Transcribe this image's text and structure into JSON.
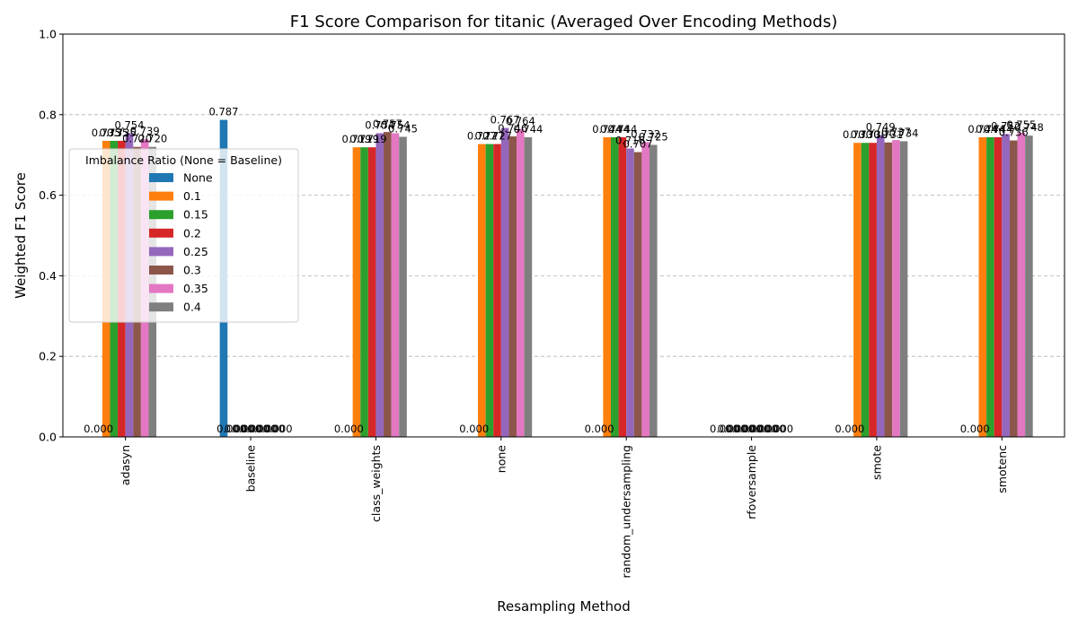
{
  "chart_data": {
    "type": "bar",
    "title": "F1 Score Comparison for titanic (Averaged Over Encoding Methods)",
    "xlabel": "Resampling Method",
    "ylabel": "Weighted F1 Score",
    "ylim": [
      0,
      1.0
    ],
    "yticks": [
      "0.0",
      "0.2",
      "0.4",
      "0.6",
      "0.8",
      "1.0"
    ],
    "grid": "y-dashed",
    "legend_title": "Imbalance Ratio (None = Baseline)",
    "legend_placement": "center-left",
    "categories": [
      "adasyn",
      "baseline",
      "class_weights",
      "none",
      "random_undersampling",
      "rfoversample",
      "smote",
      "smotenc"
    ],
    "series": [
      {
        "name": "None",
        "color": "#1f77b4",
        "values": [
          0.0,
          0.787,
          0.0,
          0.0,
          0.0,
          0.0,
          0.0,
          0.0
        ]
      },
      {
        "name": "0.1",
        "color": "#ff7f0e",
        "values": [
          0.735,
          0.0,
          0.719,
          0.727,
          0.744,
          0.0,
          0.73,
          0.744
        ]
      },
      {
        "name": "0.15",
        "color": "#2ca02c",
        "values": [
          0.735,
          0.0,
          0.719,
          0.727,
          0.744,
          0.0,
          0.73,
          0.744
        ]
      },
      {
        "name": "0.2",
        "color": "#d62728",
        "values": [
          0.735,
          0.0,
          0.719,
          0.727,
          0.744,
          0.0,
          0.73,
          0.744
        ]
      },
      {
        "name": "0.25",
        "color": "#9467bd",
        "values": [
          0.754,
          0.0,
          0.754,
          0.767,
          0.716,
          0.0,
          0.749,
          0.752
        ]
      },
      {
        "name": "0.3",
        "color": "#8c564b",
        "values": [
          0.72,
          0.0,
          0.757,
          0.746,
          0.707,
          0.0,
          0.731,
          0.736
        ]
      },
      {
        "name": "0.35",
        "color": "#e377c2",
        "values": [
          0.739,
          0.0,
          0.754,
          0.764,
          0.732,
          0.0,
          0.737,
          0.755
        ]
      },
      {
        "name": "0.4",
        "color": "#7f7f7f",
        "values": [
          0.72,
          0.0,
          0.745,
          0.744,
          0.725,
          0.0,
          0.734,
          0.748
        ]
      }
    ]
  }
}
